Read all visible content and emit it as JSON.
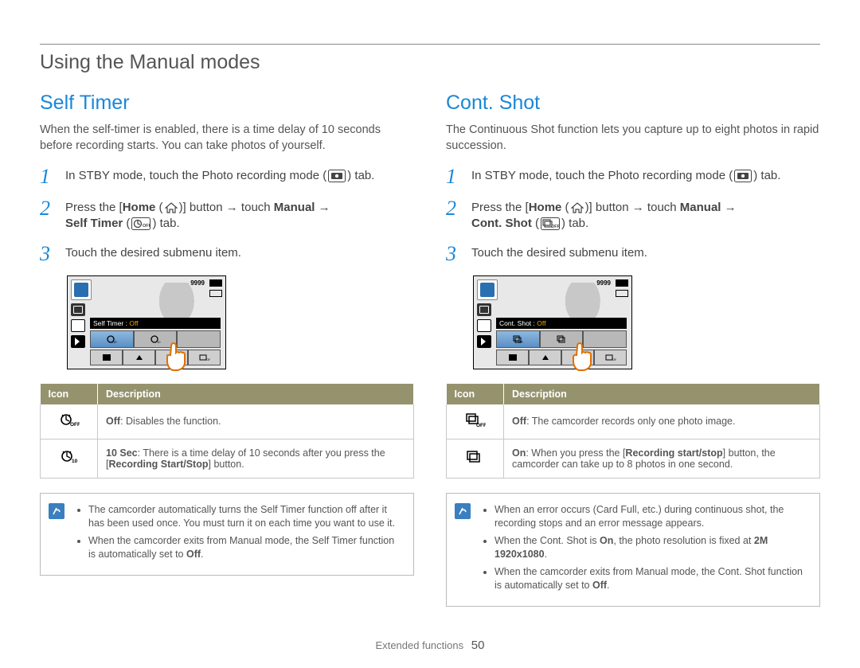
{
  "page_title": "Using the Manual modes",
  "footer": {
    "section": "Extended functions",
    "page_num": "50"
  },
  "left": {
    "heading": "Self Timer",
    "intro": "When the self-timer is enabled, there is a time delay of 10 seconds before recording starts. You can take photos of yourself.",
    "step1": "In STBY mode, touch the Photo recording mode (",
    "step1_tail": ") tab.",
    "step2_a": "Press the [",
    "step2_home": "Home",
    "step2_b": " (",
    "step2_c": ")] button → touch ",
    "step2_manual": "Manual",
    "step2_d": " → ",
    "step2_last_bold": "Self Timer",
    "step2_e": " (",
    "step2_f": ") tab.",
    "step3": "Touch the desired submenu item.",
    "shot": {
      "counter": "9999",
      "status_prefix": "Self Timer : ",
      "status_value": "Off"
    },
    "table": {
      "h1": "Icon",
      "h2": "Description",
      "r1_bold": "Off",
      "r1_rest": ": Disables the function.",
      "r2_bold": "10 Sec",
      "r2_rest_a": ": There is a time delay of 10 seconds after you press the [",
      "r2_rest_btn": "Recording Start/Stop",
      "r2_rest_b": "] button."
    },
    "notes": [
      "The camcorder automatically turns the Self Timer function off after it has been used once. You must turn it on each time you want to use it.",
      "When the camcorder exits from Manual mode, the Self Timer function is automatically set to <b>Off</b>."
    ]
  },
  "right": {
    "heading": "Cont. Shot",
    "intro": "The Continuous Shot function lets you capture up to eight photos in rapid succession.",
    "step1": "In STBY mode, touch the Photo recording mode (",
    "step1_tail": ") tab.",
    "step2_a": "Press the [",
    "step2_home": "Home",
    "step2_b": " (",
    "step2_c": ")] button → touch ",
    "step2_manual": "Manual",
    "step2_d": " → ",
    "step2_last_bold": "Cont. Shot",
    "step2_e": " (",
    "step2_f": ") tab.",
    "step3": "Touch the desired submenu item.",
    "shot": {
      "counter": "9999",
      "status_prefix": "Cont. Shot : ",
      "status_value": "Off"
    },
    "table": {
      "h1": "Icon",
      "h2": "Description",
      "r1_bold": "Off",
      "r1_rest": ": The camcorder records only one photo image.",
      "r2_bold": "On",
      "r2_rest_a": ": When you press the [",
      "r2_rest_btn": "Recording start/stop",
      "r2_rest_b": "] button, the camcorder can take up to 8 photos in one second."
    },
    "notes": [
      "When an error occurs (Card Full, etc.) during continuous shot, the recording stops and an error message appears.",
      "When the Cont. Shot is <b>On</b>, the photo resolution is fixed at <b>2M 1920x1080</b>.",
      "When the camcorder exits from Manual mode, the Cont. Shot function is automatically set to <b>Off</b>."
    ]
  }
}
